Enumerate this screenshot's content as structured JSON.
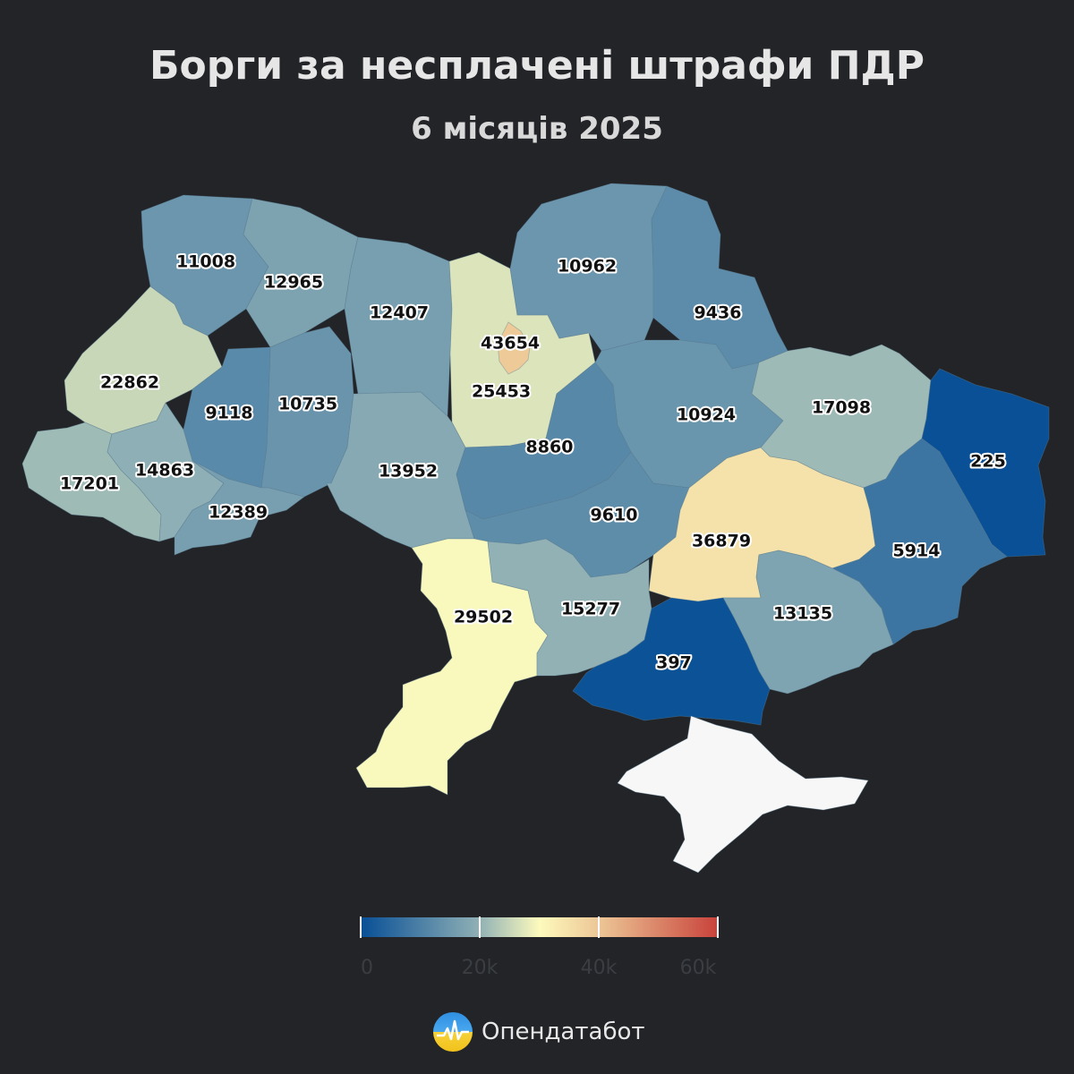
{
  "header": {
    "title": "Борги за несплачені штрафи ПДР",
    "subtitle": "6 місяців 2025"
  },
  "map": {
    "color_scale": [
      "#084f96",
      "#8fb0b5",
      "#fdfabd",
      "#ecc595",
      "#c8413a"
    ],
    "no_data_color": "#f7f7f7",
    "regions": [
      {
        "id": "volyn",
        "value": 11008
      },
      {
        "id": "rivne",
        "value": 12965
      },
      {
        "id": "zhytomyr",
        "value": 12407
      },
      {
        "id": "kyiv-oblast",
        "value": 25453
      },
      {
        "id": "kyiv-city",
        "value": 43654
      },
      {
        "id": "chernihiv",
        "value": 10962
      },
      {
        "id": "sumy",
        "value": 9436
      },
      {
        "id": "lviv",
        "value": 22862
      },
      {
        "id": "ternopil",
        "value": 9118
      },
      {
        "id": "khmelnytskyi",
        "value": 10735
      },
      {
        "id": "vinnytsia",
        "value": 13952
      },
      {
        "id": "cherkasy",
        "value": 8860
      },
      {
        "id": "poltava",
        "value": 10924
      },
      {
        "id": "kharkiv",
        "value": 17098
      },
      {
        "id": "zakarpattia",
        "value": 17201
      },
      {
        "id": "ivano-frankivsk",
        "value": 14863
      },
      {
        "id": "chernivtsi",
        "value": 12389
      },
      {
        "id": "kirovohrad",
        "value": 9610
      },
      {
        "id": "dnipropetrovsk",
        "value": 36879
      },
      {
        "id": "luhansk",
        "value": 225
      },
      {
        "id": "donetsk",
        "value": 5914
      },
      {
        "id": "odesa",
        "value": 29502
      },
      {
        "id": "mykolaiv",
        "value": 15277
      },
      {
        "id": "zaporizhzhia",
        "value": 13135
      },
      {
        "id": "kherson",
        "value": 397
      },
      {
        "id": "crimea",
        "value": null
      }
    ]
  },
  "legend": {
    "min": 0,
    "max": 60000,
    "ticks": [
      "0",
      "20k",
      "40k",
      "60k"
    ]
  },
  "brand": {
    "name": "Опендатабот",
    "logo_icon": "opendatabot-logo-icon"
  }
}
